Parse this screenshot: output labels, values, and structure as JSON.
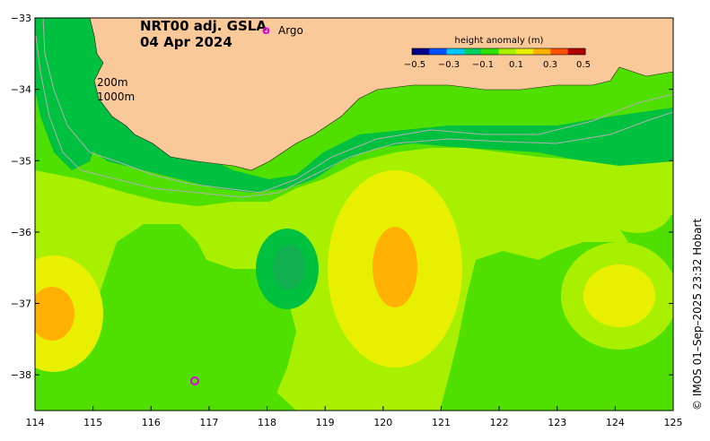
{
  "title": {
    "line1": "NRT00 adj. GSLA",
    "line2": "04 Apr 2024"
  },
  "legend": {
    "argo_symbol": "o",
    "argo_label": "Argo",
    "argo_color": "#e000e0"
  },
  "isobaths": {
    "shallow": "200m",
    "deep": "1000m"
  },
  "colorbar": {
    "title": "height anomaly (m)",
    "ticks": [
      "−0.5",
      "−0.3",
      "−0.1",
      "0.1",
      "0.3",
      "0.5"
    ],
    "colors": [
      "#00008b",
      "#0050ff",
      "#00c8ff",
      "#00d060",
      "#30e000",
      "#a8f000",
      "#e8f000",
      "#ffb000",
      "#ff5000",
      "#b00000"
    ]
  },
  "axes": {
    "x_ticks": [
      "114",
      "115",
      "116",
      "117",
      "118",
      "119",
      "120",
      "121",
      "122",
      "123",
      "124",
      "125"
    ],
    "y_ticks": [
      "−33",
      "−34",
      "−35",
      "−36",
      "−37",
      "−38"
    ],
    "xlim": [
      114,
      125
    ],
    "ylim": [
      -38.5,
      -33
    ]
  },
  "credit": "© IMOS 01–Sep–2025 23:32 Hobart",
  "colors": {
    "land": "#f9c99a",
    "bg_green": "#4fe000",
    "dark_green": "#00c040",
    "light_green": "#a8f000",
    "yellow": "#e8f000",
    "orange": "#ffb000"
  },
  "argo_floats": [
    {
      "lon": 116.75,
      "lat": -38.1
    }
  ]
}
